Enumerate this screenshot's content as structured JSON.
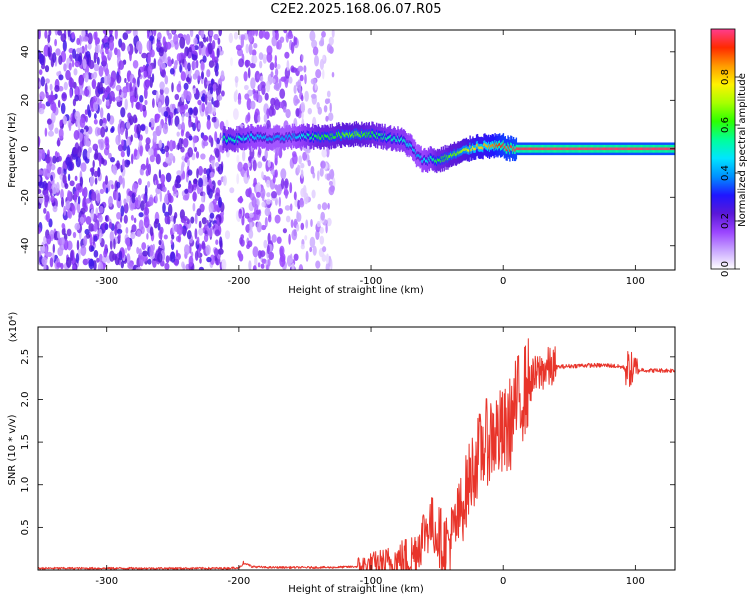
{
  "figure": {
    "title": "C2E2.2025.168.06.07.R05"
  },
  "chart_data": [
    {
      "type": "heatmap",
      "xlabel": "Height of straight line (km)",
      "ylabel": "Frequency (Hz)",
      "xlim": [
        -352,
        130
      ],
      "ylim": [
        -50,
        49
      ],
      "xticks": [
        -300,
        -200,
        -100,
        0,
        100
      ],
      "yticks": [
        -40,
        -20,
        0,
        20,
        40
      ],
      "colorbar": {
        "label": "Normalized spectral amplitude",
        "range": [
          0,
          1
        ],
        "ticks": [
          "0.0",
          "0.2",
          "0.4",
          "0.6",
          "0.8"
        ],
        "colors": [
          "#ffffff",
          "#c9a6ff",
          "#9b45ff",
          "#5a18d8",
          "#1f16ff",
          "#0090ff",
          "#00e5ff",
          "#00ff9a",
          "#2dff00",
          "#a8ff00",
          "#fff200",
          "#ff9a00",
          "#ff2a00",
          "#ff3d8e"
        ]
      },
      "regions": [
        {
          "name": "noise",
          "x_range": [
            -352,
            -212
          ],
          "amplitude": 0.15
        },
        {
          "name": "noise-gap",
          "x_range": [
            -212,
            -200
          ],
          "amplitude": 0.03
        },
        {
          "name": "noise",
          "x_range": [
            -200,
            -152
          ],
          "amplitude": 0.11
        },
        {
          "name": "noise-sparse",
          "x_range": [
            -152,
            -128
          ],
          "amplitude": 0.07
        }
      ],
      "trace": {
        "x": [
          -212,
          -200,
          -190,
          -175,
          -160,
          -150,
          -140,
          -130,
          -120,
          -110,
          -100,
          -90,
          -80,
          -75,
          -70,
          -65,
          -60,
          -55,
          -50,
          -45,
          -40,
          -35,
          -30,
          -25,
          -20,
          -15,
          -10,
          -5,
          0,
          5,
          10,
          20,
          40,
          60,
          80,
          100,
          120,
          130
        ],
        "freq": [
          4,
          4,
          5,
          4,
          5,
          5,
          5,
          5,
          6,
          6,
          6,
          5,
          4,
          3,
          1,
          -3,
          -5,
          -4,
          -5,
          -4,
          -3,
          -2,
          -1,
          0,
          1,
          1,
          1,
          1,
          1,
          0,
          0,
          0,
          0,
          0,
          0,
          0,
          0,
          0
        ],
        "amp": [
          0.55,
          0.5,
          0.45,
          0.4,
          0.4,
          0.5,
          0.6,
          0.6,
          0.65,
          0.65,
          0.6,
          0.55,
          0.5,
          0.5,
          0.45,
          0.4,
          0.45,
          0.5,
          0.6,
          0.6,
          0.65,
          0.65,
          0.7,
          0.75,
          0.8,
          0.8,
          0.85,
          0.9,
          0.95,
          0.95,
          0.97,
          0.97,
          0.98,
          0.98,
          0.98,
          0.98,
          0.98,
          0.98
        ]
      }
    },
    {
      "type": "line",
      "xlabel": "Height of straight line (km)",
      "ylabel": "SNR (10 * v/v)",
      "y_multiplier": "(x10⁴)",
      "xlim": [
        -352,
        130
      ],
      "ylim": [
        0,
        2.85
      ],
      "xticks": [
        -300,
        -200,
        -100,
        0,
        100
      ],
      "yticks": [
        0.5,
        1.0,
        1.5,
        2.0,
        2.5
      ],
      "series": [
        {
          "color": "#e8342a",
          "x": [
            -352,
            -300,
            -250,
            -210,
            -200,
            -195,
            -190,
            -180,
            -150,
            -130,
            -110,
            -100,
            -90,
            -80,
            -70,
            -65,
            -60,
            -55,
            -50,
            -45,
            -40,
            -35,
            -30,
            -25,
            -20,
            -15,
            -10,
            -5,
            0,
            5,
            10,
            20,
            30,
            40,
            60,
            80,
            90,
            95,
            100,
            105,
            110,
            130
          ],
          "y": [
            0.02,
            0.02,
            0.02,
            0.02,
            0.03,
            0.08,
            0.04,
            0.03,
            0.03,
            0.03,
            0.04,
            0.05,
            0.06,
            0.1,
            0.15,
            0.25,
            0.45,
            0.55,
            0.45,
            0.3,
            0.35,
            0.55,
            0.8,
            1.1,
            1.3,
            1.45,
            1.55,
            1.6,
            1.55,
            1.7,
            1.95,
            2.2,
            2.35,
            2.38,
            2.4,
            2.4,
            2.38,
            2.36,
            2.32,
            2.35,
            2.34,
            2.34
          ]
        }
      ]
    }
  ]
}
